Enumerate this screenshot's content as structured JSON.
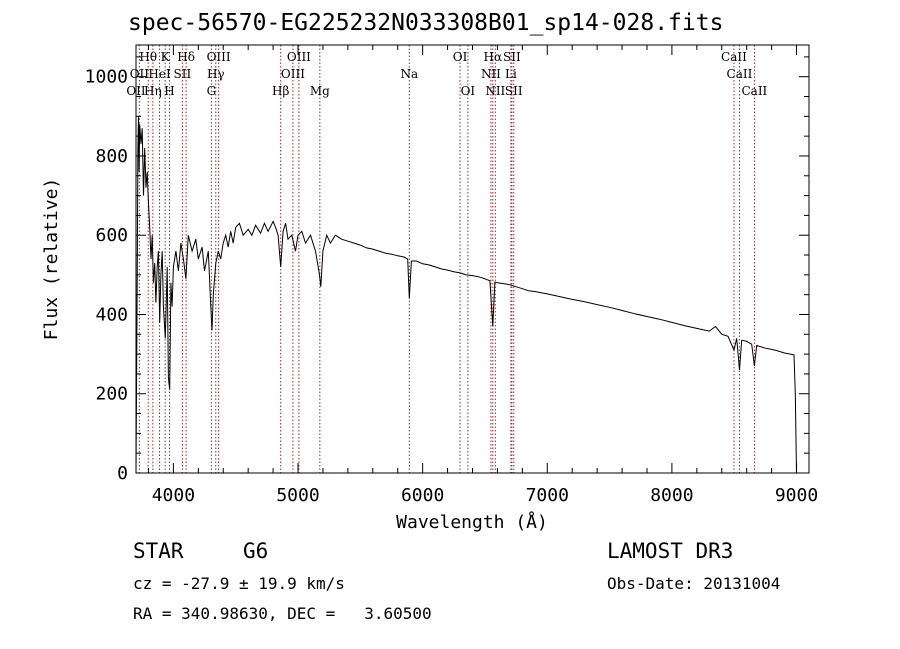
{
  "header": {
    "title": "spec-56570-EG225232N033308B01_sp14-028.fits"
  },
  "info": {
    "object_class": "STAR",
    "subclass": "G6",
    "survey": "LAMOST DR3",
    "cz": "cz = -27.9 ± 19.9 km/s",
    "obs_date": "Obs-Date: 20131004",
    "radec": "RA = 340.98630, DEC =   3.60500"
  },
  "chart_data": {
    "type": "line",
    "title": "spec-56570-EG225232N033308B01_sp14-028.fits",
    "xlabel": "Wavelength (Å)",
    "ylabel": "Flux (relative)",
    "xlim": [
      3700,
      9100
    ],
    "ylim": [
      0,
      1080
    ],
    "xticks": [
      4000,
      5000,
      6000,
      7000,
      8000,
      9000
    ],
    "yticks": [
      0,
      200,
      400,
      600,
      800,
      1000
    ],
    "line_color": "#000000",
    "marker_color": "#b22222",
    "series": [
      {
        "name": "flux",
        "points": [
          [
            3700,
            0
          ],
          [
            3710,
            480
          ],
          [
            3715,
            820
          ],
          [
            3720,
            900
          ],
          [
            3725,
            760
          ],
          [
            3730,
            880
          ],
          [
            3740,
            830
          ],
          [
            3750,
            870
          ],
          [
            3760,
            700
          ],
          [
            3770,
            820
          ],
          [
            3780,
            720
          ],
          [
            3790,
            760
          ],
          [
            3800,
            680
          ],
          [
            3810,
            620
          ],
          [
            3820,
            540
          ],
          [
            3830,
            600
          ],
          [
            3840,
            480
          ],
          [
            3850,
            530
          ],
          [
            3860,
            430
          ],
          [
            3870,
            520
          ],
          [
            3880,
            560
          ],
          [
            3890,
            380
          ],
          [
            3900,
            500
          ],
          [
            3910,
            560
          ],
          [
            3920,
            420
          ],
          [
            3935,
            340
          ],
          [
            3950,
            520
          ],
          [
            3960,
            240
          ],
          [
            3970,
            210
          ],
          [
            3980,
            480
          ],
          [
            3990,
            420
          ],
          [
            4000,
            520
          ],
          [
            4020,
            560
          ],
          [
            4040,
            510
          ],
          [
            4060,
            580
          ],
          [
            4080,
            540
          ],
          [
            4100,
            490
          ],
          [
            4120,
            600
          ],
          [
            4150,
            560
          ],
          [
            4180,
            590
          ],
          [
            4200,
            540
          ],
          [
            4230,
            570
          ],
          [
            4250,
            510
          ],
          [
            4280,
            560
          ],
          [
            4300,
            420
          ],
          [
            4310,
            360
          ],
          [
            4320,
            450
          ],
          [
            4340,
            530
          ],
          [
            4360,
            560
          ],
          [
            4380,
            540
          ],
          [
            4400,
            580
          ],
          [
            4420,
            600
          ],
          [
            4440,
            570
          ],
          [
            4460,
            610
          ],
          [
            4480,
            580
          ],
          [
            4500,
            620
          ],
          [
            4530,
            630
          ],
          [
            4560,
            600
          ],
          [
            4600,
            615
          ],
          [
            4630,
            600
          ],
          [
            4660,
            625
          ],
          [
            4700,
            605
          ],
          [
            4730,
            630
          ],
          [
            4760,
            610
          ],
          [
            4800,
            635
          ],
          [
            4820,
            620
          ],
          [
            4840,
            600
          ],
          [
            4861,
            520
          ],
          [
            4880,
            610
          ],
          [
            4900,
            630
          ],
          [
            4920,
            590
          ],
          [
            4950,
            600
          ],
          [
            4980,
            560
          ],
          [
            5000,
            600
          ],
          [
            5030,
            610
          ],
          [
            5060,
            580
          ],
          [
            5100,
            600
          ],
          [
            5140,
            560
          ],
          [
            5172,
            500
          ],
          [
            5183,
            470
          ],
          [
            5200,
            560
          ],
          [
            5230,
            600
          ],
          [
            5260,
            580
          ],
          [
            5300,
            600
          ],
          [
            5350,
            590
          ],
          [
            5400,
            585
          ],
          [
            5450,
            580
          ],
          [
            5500,
            575
          ],
          [
            5550,
            568
          ],
          [
            5600,
            565
          ],
          [
            5650,
            560
          ],
          [
            5700,
            555
          ],
          [
            5750,
            552
          ],
          [
            5800,
            548
          ],
          [
            5850,
            545
          ],
          [
            5880,
            540
          ],
          [
            5893,
            440
          ],
          [
            5910,
            535
          ],
          [
            5950,
            535
          ],
          [
            6000,
            528
          ],
          [
            6050,
            525
          ],
          [
            6100,
            520
          ],
          [
            6150,
            515
          ],
          [
            6200,
            512
          ],
          [
            6250,
            508
          ],
          [
            6300,
            505
          ],
          [
            6350,
            500
          ],
          [
            6400,
            498
          ],
          [
            6450,
            495
          ],
          [
            6500,
            490
          ],
          [
            6540,
            485
          ],
          [
            6563,
            370
          ],
          [
            6580,
            482
          ],
          [
            6600,
            480
          ],
          [
            6650,
            478
          ],
          [
            6700,
            475
          ],
          [
            6750,
            470
          ],
          [
            6800,
            465
          ],
          [
            6850,
            460
          ],
          [
            6900,
            458
          ],
          [
            6950,
            455
          ],
          [
            7000,
            452
          ],
          [
            7100,
            445
          ],
          [
            7200,
            438
          ],
          [
            7300,
            432
          ],
          [
            7400,
            425
          ],
          [
            7500,
            418
          ],
          [
            7600,
            410
          ],
          [
            7700,
            402
          ],
          [
            7800,
            395
          ],
          [
            7900,
            388
          ],
          [
            8000,
            380
          ],
          [
            8100,
            372
          ],
          [
            8200,
            365
          ],
          [
            8300,
            358
          ],
          [
            8350,
            370
          ],
          [
            8400,
            350
          ],
          [
            8450,
            345
          ],
          [
            8498,
            310
          ],
          [
            8520,
            340
          ],
          [
            8542,
            260
          ],
          [
            8560,
            335
          ],
          [
            8600,
            332
          ],
          [
            8640,
            325
          ],
          [
            8662,
            270
          ],
          [
            8680,
            322
          ],
          [
            8700,
            320
          ],
          [
            8750,
            315
          ],
          [
            8800,
            312
          ],
          [
            8850,
            308
          ],
          [
            8900,
            303
          ],
          [
            8950,
            300
          ],
          [
            8980,
            298
          ],
          [
            8990,
            200
          ],
          [
            9000,
            0
          ]
        ]
      }
    ],
    "line_markers": [
      {
        "label": "Hθ",
        "wavelength": 3798,
        "row": 1
      },
      {
        "label": "K",
        "wavelength": 3934,
        "row": 1
      },
      {
        "label": "Hδ",
        "wavelength": 4102,
        "row": 1
      },
      {
        "label": "OIII",
        "wavelength": 4363,
        "row": 1
      },
      {
        "label": "OIII",
        "wavelength": 5007,
        "row": 1
      },
      {
        "label": "OI",
        "wavelength": 6300,
        "row": 1
      },
      {
        "label": "Hα",
        "wavelength": 6563,
        "row": 1
      },
      {
        "label": "SII",
        "wavelength": 6716,
        "row": 1
      },
      {
        "label": "CaII",
        "wavelength": 8498,
        "row": 1
      },
      {
        "label": "OII",
        "wavelength": 3727,
        "row": 2
      },
      {
        "label": "HeI",
        "wavelength": 3889,
        "row": 2
      },
      {
        "label": "SII",
        "wavelength": 4072,
        "row": 2
      },
      {
        "label": "Hγ",
        "wavelength": 4340,
        "row": 2
      },
      {
        "label": "OIII",
        "wavelength": 4959,
        "row": 2
      },
      {
        "label": "Na",
        "wavelength": 5893,
        "row": 2
      },
      {
        "label": "NII",
        "wavelength": 6548,
        "row": 2
      },
      {
        "label": "Li",
        "wavelength": 6708,
        "row": 2
      },
      {
        "label": "CaII",
        "wavelength": 8542,
        "row": 2
      },
      {
        "label": "OII",
        "wavelength": 3700,
        "row": 3
      },
      {
        "label": "Hη",
        "wavelength": 3835,
        "row": 3
      },
      {
        "label": "H",
        "wavelength": 3969,
        "row": 3
      },
      {
        "label": "G",
        "wavelength": 4305,
        "row": 3
      },
      {
        "label": "Hβ",
        "wavelength": 4861,
        "row": 3
      },
      {
        "label": "Mg",
        "wavelength": 5175,
        "row": 3
      },
      {
        "label": "OI",
        "wavelength": 6363,
        "row": 3
      },
      {
        "label": "NII",
        "wavelength": 6583,
        "row": 3
      },
      {
        "label": "SII",
        "wavelength": 6731,
        "row": 3
      },
      {
        "label": "CaII",
        "wavelength": 8662,
        "row": 3
      }
    ]
  }
}
